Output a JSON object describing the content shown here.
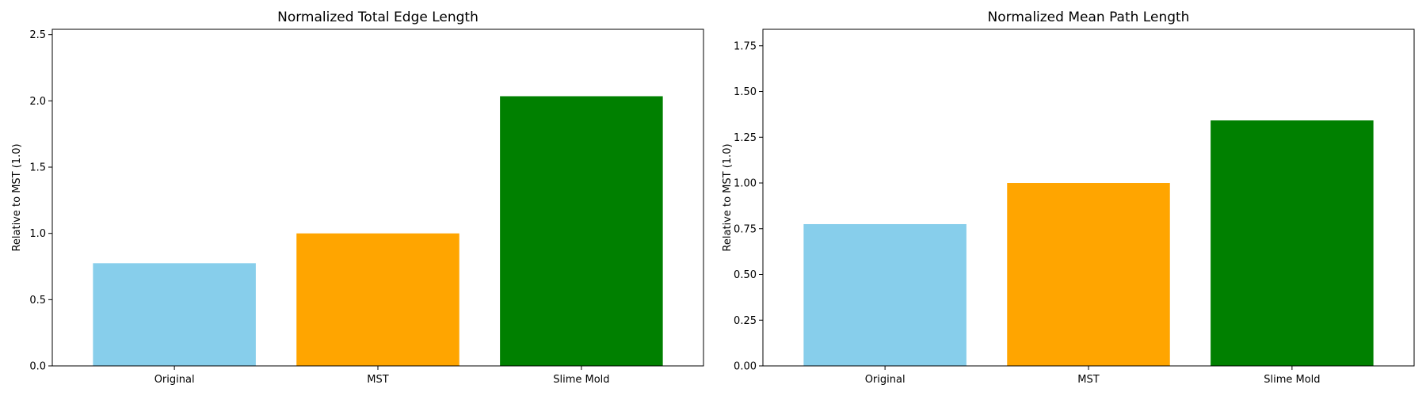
{
  "chart_data": [
    {
      "type": "bar",
      "title": "Normalized Total Edge Length",
      "xlabel": "",
      "ylabel": "Relative to MST (1.0)",
      "categories": [
        "Original",
        "MST",
        "Slime Mold"
      ],
      "values": [
        0.775,
        1.0,
        2.035
      ],
      "colors": [
        "#87CEEB",
        "#FFA500",
        "#008000"
      ],
      "ylim": [
        0,
        2.54
      ],
      "yticks": [
        "0.0",
        "0.5",
        "1.0",
        "1.5",
        "2.0",
        "2.5"
      ],
      "ytick_values": [
        0,
        0.5,
        1.0,
        1.5,
        2.0,
        2.5
      ],
      "grid": false,
      "legend": "none"
    },
    {
      "type": "bar",
      "title": "Normalized Mean Path Length",
      "xlabel": "",
      "ylabel": "Relative to MST (1.0)",
      "categories": [
        "Original",
        "MST",
        "Slime Mold"
      ],
      "values": [
        0.775,
        1.0,
        1.342
      ],
      "colors": [
        "#87CEEB",
        "#FFA500",
        "#008000"
      ],
      "ylim": [
        0,
        1.84
      ],
      "yticks": [
        "0.00",
        "0.25",
        "0.50",
        "0.75",
        "1.00",
        "1.25",
        "1.50",
        "1.75"
      ],
      "ytick_values": [
        0,
        0.25,
        0.5,
        0.75,
        1.0,
        1.25,
        1.5,
        1.75
      ],
      "grid": false,
      "legend": "none"
    }
  ]
}
